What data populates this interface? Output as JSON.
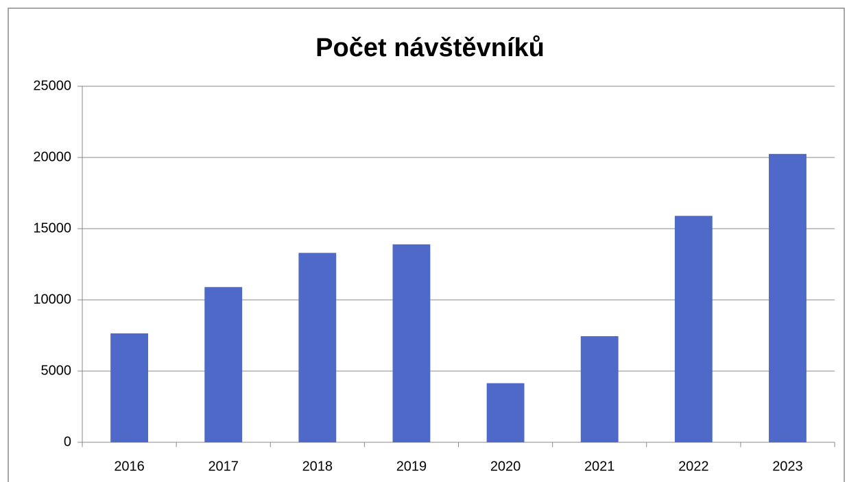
{
  "chart_data": {
    "type": "bar",
    "title": "Počet návštěvníků",
    "categories": [
      "2016",
      "2017",
      "2018",
      "2019",
      "2020",
      "2021",
      "2022",
      "2023"
    ],
    "values": [
      7650,
      10900,
      13300,
      13900,
      4150,
      7450,
      15900,
      20250
    ],
    "color": "#4f69c8",
    "ylim": [
      0,
      25000
    ],
    "yticks": [
      0,
      5000,
      10000,
      15000,
      20000,
      25000
    ],
    "grid": true
  }
}
